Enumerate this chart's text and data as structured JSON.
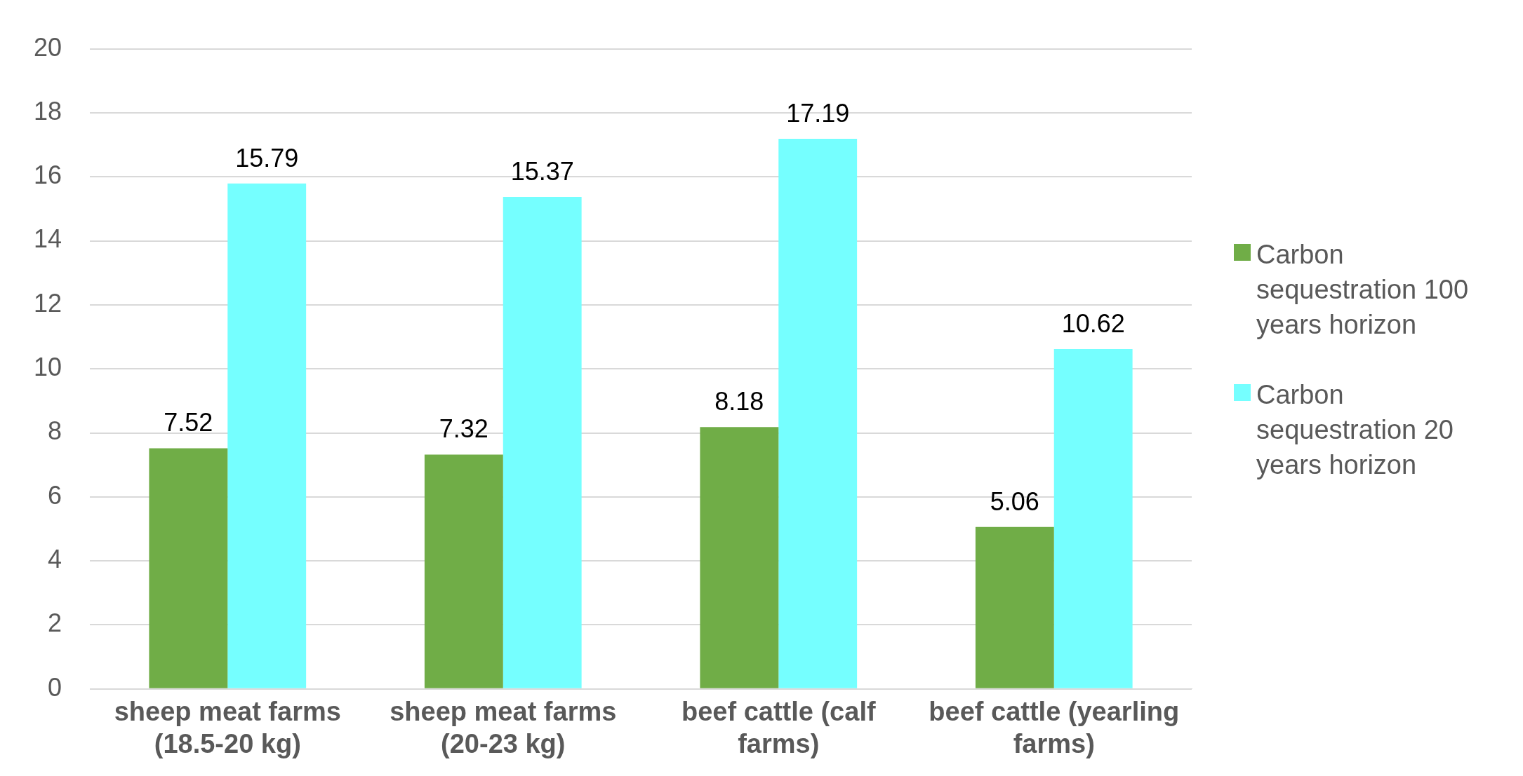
{
  "chart_data": {
    "type": "bar",
    "categories": [
      "sheep meat farms (18.5-20 kg)",
      "sheep meat farms (20-23 kg)",
      "beef cattle (calf farms)",
      "beef cattle (yearling farms)"
    ],
    "series": [
      {
        "name": "Carbon sequestration 100 years horizon",
        "color": "#70ad47",
        "values": [
          7.52,
          7.32,
          8.18,
          5.06
        ]
      },
      {
        "name": "Carbon sequestration 20 years horizon",
        "color": "#75ffff",
        "values": [
          15.79,
          15.37,
          17.19,
          10.62
        ]
      }
    ],
    "ylim": [
      0,
      20
    ],
    "yticks": [
      0,
      2,
      4,
      6,
      8,
      10,
      12,
      14,
      16,
      18,
      20
    ],
    "grid": "y",
    "legend": "right",
    "data_labels": true
  }
}
